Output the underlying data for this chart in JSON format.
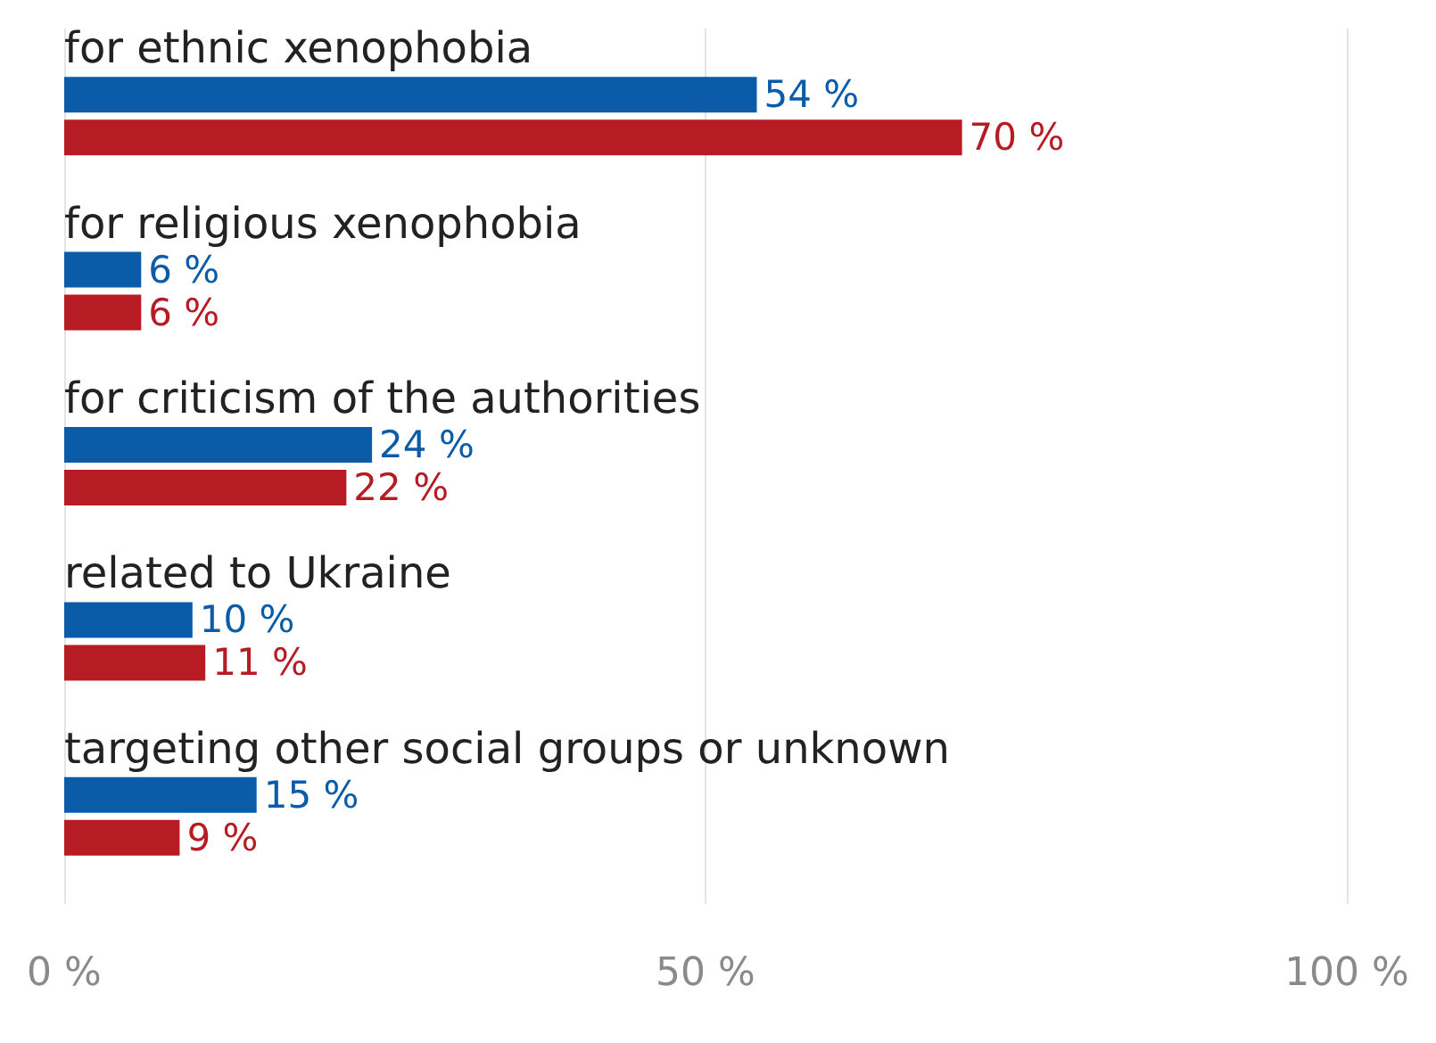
{
  "chart_data": {
    "type": "bar",
    "orientation": "horizontal",
    "categories": [
      "for ethnic xenophobia",
      "for religious xenophobia",
      "for criticism of the authorities",
      "related to Ukraine",
      "targeting other social groups or unknown"
    ],
    "series": [
      {
        "color": "#0a5ca8",
        "values": [
          54,
          6,
          24,
          10,
          15
        ],
        "value_labels": [
          "54 %",
          "6 %",
          "24 %",
          "10 %",
          "15 %"
        ]
      },
      {
        "color": "#b71c24",
        "values": [
          70,
          6,
          22,
          11,
          9
        ],
        "value_labels": [
          "70 %",
          "6 %",
          "22 %",
          "11 %",
          "9 %"
        ]
      }
    ],
    "xlim": [
      0,
      100
    ],
    "xticks": [
      {
        "value": 0,
        "label": "0 %"
      },
      {
        "value": 50,
        "label": "50 %"
      },
      {
        "value": 100,
        "label": "100 %"
      }
    ],
    "grid": "x"
  }
}
